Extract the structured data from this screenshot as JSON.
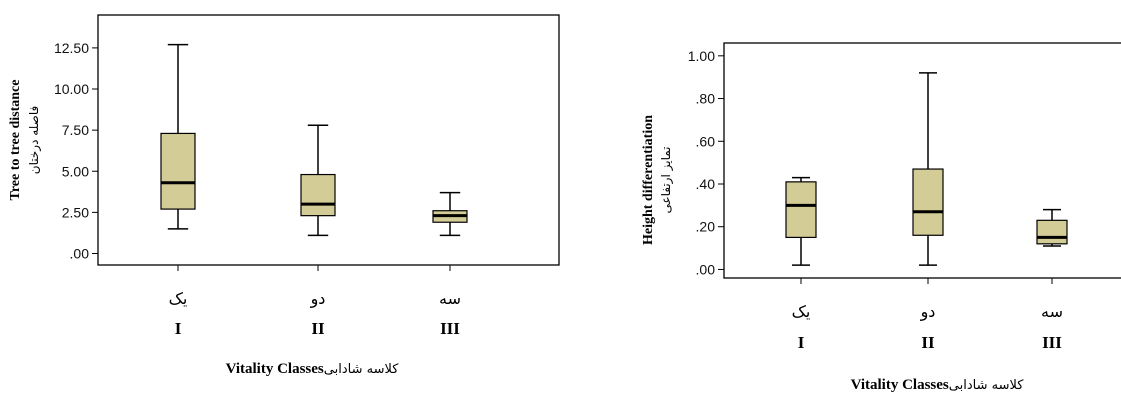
{
  "chart_data": [
    {
      "type": "boxplot",
      "ylabel": "Tree to tree distance",
      "ylabel_fa": "فاصله درختان",
      "xlabel": "Vitality Classes",
      "xlabel_fa": "کلاسه شادابی",
      "categories": [
        "یک",
        "دو",
        "سه"
      ],
      "roman": [
        "I",
        "II",
        "III"
      ],
      "ylim": [
        -0.7,
        14.5
      ],
      "yticks": [
        0,
        2.5,
        5,
        7.5,
        10,
        12.5
      ],
      "ytick_labels": [
        ".00",
        "2.50",
        "5.00",
        "7.50",
        "10.00",
        "12.50"
      ],
      "box_color": "#d4cc96",
      "boxes": [
        {
          "min": 1.5,
          "q1": 2.7,
          "median": 4.3,
          "q3": 7.3,
          "max": 12.7
        },
        {
          "min": 1.1,
          "q1": 2.3,
          "median": 3.0,
          "q3": 4.8,
          "max": 7.8
        },
        {
          "min": 1.1,
          "q1": 1.9,
          "median": 2.3,
          "q3": 2.6,
          "max": 3.7
        }
      ]
    },
    {
      "type": "boxplot",
      "ylabel": "Height differentiation",
      "ylabel_fa": "تمایز ارتفاعی",
      "xlabel": "Vitality Classes",
      "xlabel_fa": "کلاسه شادابی",
      "categories": [
        "یک",
        "دو",
        "سه"
      ],
      "roman": [
        "I",
        "II",
        "III"
      ],
      "ylim": [
        -0.04,
        1.06
      ],
      "yticks": [
        0,
        0.2,
        0.4,
        0.6,
        0.8,
        1.0
      ],
      "ytick_labels": [
        ".00",
        ".20",
        ".40",
        ".60",
        ".80",
        "1.00"
      ],
      "box_color": "#d4cc96",
      "boxes": [
        {
          "min": 0.02,
          "q1": 0.15,
          "median": 0.3,
          "q3": 0.41,
          "max": 0.43
        },
        {
          "min": 0.02,
          "q1": 0.16,
          "median": 0.27,
          "q3": 0.47,
          "max": 0.92
        },
        {
          "min": 0.11,
          "q1": 0.12,
          "median": 0.15,
          "q3": 0.23,
          "max": 0.28
        }
      ]
    }
  ]
}
